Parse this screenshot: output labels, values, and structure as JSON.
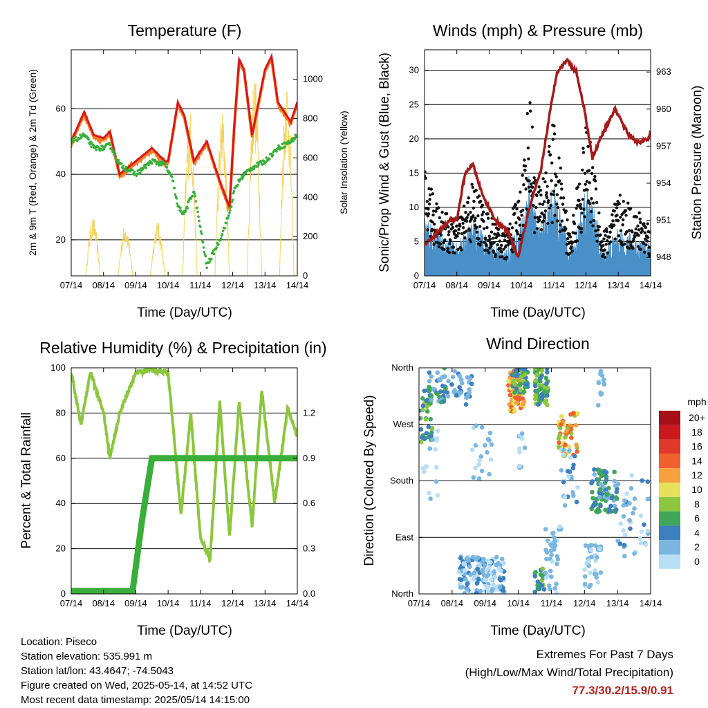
{
  "colors": {
    "t2m": "#d7191c",
    "t9m": "#f07f20",
    "td": "#3aae3a",
    "solar": "#f4d35e",
    "wind": "#111111",
    "gust": "#4a90c8",
    "pressure": "#a31b1b",
    "rh": "#8cc63f",
    "precip": "#3aae3a"
  },
  "x_ticks": [
    "07/14",
    "08/14",
    "09/14",
    "10/14",
    "11/14",
    "12/14",
    "13/14",
    "14/14"
  ],
  "panels": {
    "temperature": {
      "title": "Temperature (F)",
      "xlabel": "Time (Day/UTC)",
      "ylabel": "2m & 9m T (Red, Orange) & 2m Td (Green)",
      "ylabel_right": "Solar Insolation (Yellow)"
    },
    "winds": {
      "title": "Winds (mph) & Pressure (mb)",
      "xlabel": "Time (Day/UTC)",
      "ylabel": "Sonic/Prop Wind & Gust (Blue, Black)",
      "ylabel_right": "Station Pressure (Maroon)"
    },
    "rh": {
      "title": "Relative Humidity (%) & Precipitation (in)",
      "xlabel": "Time (Day/UTC)",
      "ylabel": "Percent & Total Rainfall"
    },
    "wdir": {
      "title": "Wind Direction",
      "xlabel": "Time (Day/UTC)",
      "ylabel": "Direction (Colored By Speed)",
      "legend_title": "mph",
      "legend": [
        {
          "label": "20+",
          "color": "#a50f15"
        },
        {
          "label": "18",
          "color": "#cb181d"
        },
        {
          "label": "16",
          "color": "#e0392b"
        },
        {
          "label": "14",
          "color": "#f0612f"
        },
        {
          "label": "12",
          "color": "#f7a13e"
        },
        {
          "label": "10",
          "color": "#e6e05a"
        },
        {
          "label": "8",
          "color": "#8cc63f"
        },
        {
          "label": "6",
          "color": "#41a65a"
        },
        {
          "label": "4",
          "color": "#3d7fbf"
        },
        {
          "label": "2",
          "color": "#7ab6e0"
        },
        {
          "label": "0",
          "color": "#b8def5"
        }
      ]
    }
  },
  "chart_data": [
    {
      "type": "line",
      "title": "Temperature (F)",
      "xlabel": "Time (Day/UTC)",
      "ylabel": "2m & 9m T (Red, Orange) & 2m Td (Green)",
      "ylabel_right": "Solar Insolation (Yellow)",
      "x": [
        0,
        0.4,
        0.7,
        1.0,
        1.2,
        1.5,
        2.0,
        2.5,
        2.9,
        3.0,
        3.15,
        3.3,
        3.5,
        3.8,
        4.2,
        4.6,
        4.9,
        5.05,
        5.2,
        5.35,
        5.6,
        6.0,
        6.2,
        6.4,
        6.8,
        7.0
      ],
      "ylim": [
        9,
        78
      ],
      "ylim_right": [
        0,
        1150
      ],
      "series": [
        {
          "name": "2m T",
          "values": [
            50,
            59,
            52,
            51,
            53,
            40,
            44,
            48,
            44,
            44,
            53,
            62,
            58,
            44,
            50,
            38,
            30,
            55,
            75,
            72,
            52,
            72,
            76,
            62,
            56,
            62
          ]
        },
        {
          "name": "2m Td",
          "values": [
            50,
            52,
            48,
            48,
            49,
            43,
            40,
            44,
            43,
            41,
            38,
            30,
            28,
            35,
            12,
            20,
            28,
            35,
            38,
            40,
            42,
            44,
            46,
            48,
            50,
            52
          ]
        },
        {
          "name": "Solar",
          "values": [
            0,
            300,
            0,
            0,
            270,
            0,
            0,
            280,
            0,
            0,
            850,
            0,
            0,
            850,
            0,
            0,
            0,
            0,
            1050,
            0,
            0,
            0,
            1030,
            0,
            0,
            0
          ]
        }
      ],
      "yticks": [
        20,
        40,
        60
      ],
      "yticks_right": [
        0,
        200,
        400,
        600,
        800,
        1000
      ]
    },
    {
      "type": "scatter",
      "title": "Winds (mph) & Pressure (mb)",
      "xlabel": "Time (Day/UTC)",
      "ylabel": "Sonic/Prop Wind & Gust (Blue, Black)",
      "ylabel_right": "Station Pressure (Maroon)",
      "ylim": [
        0,
        33
      ],
      "ylim_right": [
        946.5,
        964.8
      ],
      "yticks": [
        0,
        5,
        10,
        15,
        20,
        25,
        30
      ],
      "yticks_right": [
        948,
        951,
        954,
        957,
        960,
        963
      ],
      "pressure": {
        "x": [
          0,
          0.4,
          0.8,
          1.0,
          1.2,
          1.3,
          1.5,
          1.8,
          2.2,
          2.6,
          2.9,
          3.2,
          3.6,
          3.9,
          4.1,
          4.4,
          4.7,
          4.95,
          5.2,
          5.5,
          5.9,
          6.3,
          6.6,
          6.9,
          7.0
        ],
        "values": [
          949,
          950,
          951,
          951,
          954,
          955,
          955.5,
          953,
          951,
          950,
          948,
          951.5,
          955,
          960,
          963,
          964,
          963,
          960,
          956,
          958,
          960,
          958,
          957.3,
          957.5,
          958
        ]
      },
      "gust_envelope": {
        "x": [
          0,
          0.5,
          1.0,
          1.5,
          2.0,
          2.5,
          3.0,
          3.25,
          3.5,
          4.0,
          4.5,
          5.0,
          5.25,
          5.5,
          6.0,
          6.5,
          7.0
        ],
        "values": [
          16,
          10,
          8,
          14,
          9,
          6,
          14,
          28,
          12,
          23,
          6,
          22,
          18,
          6,
          12,
          10,
          8
        ]
      }
    },
    {
      "type": "line",
      "title": "Relative Humidity (%) & Precipitation (in)",
      "xlabel": "Time (Day/UTC)",
      "ylabel": "Percent & Total Rainfall",
      "ylim": [
        0,
        100
      ],
      "ylim_right": [
        0,
        1.5
      ],
      "yticks": [
        0,
        20,
        40,
        60,
        80,
        100
      ],
      "yticks_right": [
        0.0,
        0.3,
        0.6,
        0.9,
        1.2
      ],
      "series": [
        {
          "name": "RH",
          "values": [
            [
              0,
              98
            ],
            [
              0.3,
              75
            ],
            [
              0.6,
              98
            ],
            [
              1.0,
              80
            ],
            [
              1.2,
              60
            ],
            [
              1.5,
              80
            ],
            [
              2.0,
              98
            ],
            [
              2.5,
              99
            ],
            [
              3.0,
              98
            ],
            [
              3.4,
              35
            ],
            [
              3.7,
              80
            ],
            [
              4.0,
              25
            ],
            [
              4.3,
              15
            ],
            [
              4.6,
              85
            ],
            [
              4.9,
              25
            ],
            [
              5.2,
              85
            ],
            [
              5.6,
              30
            ],
            [
              5.9,
              90
            ],
            [
              6.3,
              40
            ],
            [
              6.7,
              82
            ],
            [
              7.0,
              70
            ]
          ]
        },
        {
          "name": "Precip",
          "values": [
            [
              0,
              0.02
            ],
            [
              1.6,
              0.02
            ],
            [
              1.9,
              0.02
            ],
            [
              2.2,
              0.5
            ],
            [
              2.5,
              0.9
            ],
            [
              7.0,
              0.9
            ]
          ]
        }
      ]
    },
    {
      "type": "scatter",
      "title": "Wind Direction",
      "xlabel": "Time (Day/UTC)",
      "ylabel": "Direction (Colored By Speed)",
      "yticks": [
        "North",
        "West",
        "South",
        "East",
        "North"
      ],
      "legend_title": "mph"
    }
  ],
  "footer": {
    "location": "Location: Piseco",
    "elevation": "Station elevation: 535.991 m",
    "latlon": "Station lat/lon: 43.4647; -74.5043",
    "created": "Figure created on Wed, 2025-05-14, at 14:52 UTC",
    "recent": "Most recent data timestamp: 2025/05/14 14:15:00",
    "extremes_title": "Extremes For Past 7 Days",
    "extremes_sub": "(High/Low/Max Wind/Total Precipitation)",
    "extremes_values": "77.3/30.2/15.9/0.91"
  }
}
